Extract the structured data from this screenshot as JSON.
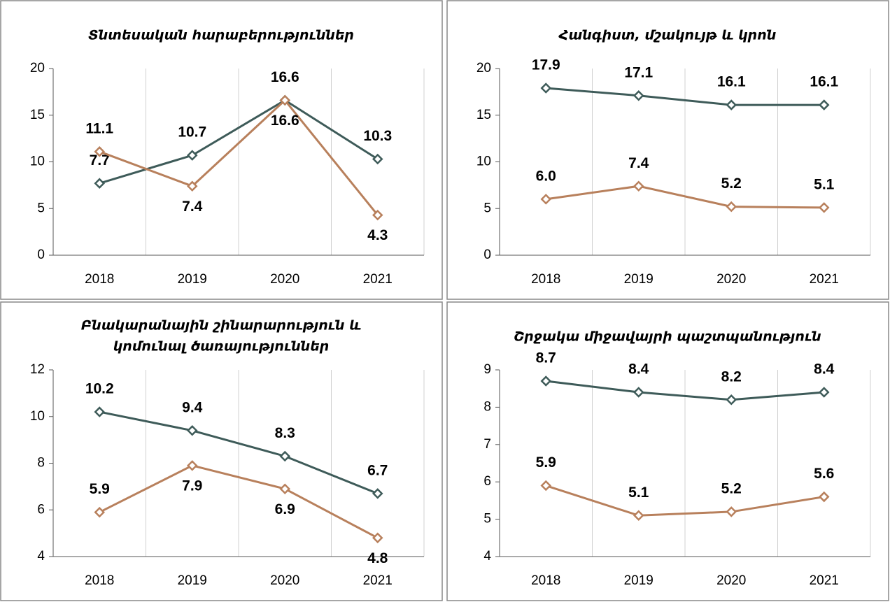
{
  "chart_data": [
    {
      "type": "line",
      "title": [
        "Տնտեսական հարաբերություններ"
      ],
      "categories": [
        "2018",
        "2019",
        "2020",
        "2021"
      ],
      "series": [
        {
          "color": "#3e5b59",
          "values": [
            7.7,
            10.7,
            16.6,
            10.3
          ],
          "value_labels": [
            "7.7",
            "10.7",
            "16.6",
            "10.3"
          ]
        },
        {
          "color": "#b8805c",
          "values": [
            11.1,
            7.4,
            16.6,
            4.3
          ],
          "value_labels": [
            "11.1",
            "7.4",
            "16.6",
            "4.3"
          ]
        }
      ],
      "ylim": [
        0,
        20
      ],
      "yticks": [
        0,
        5,
        10,
        15,
        20
      ]
    },
    {
      "type": "line",
      "title": [
        "Հանգիստ, մշակույթ և կրոն"
      ],
      "categories": [
        "2018",
        "2019",
        "2020",
        "2021"
      ],
      "series": [
        {
          "color": "#3e5b59",
          "values": [
            17.9,
            17.1,
            16.1,
            16.1
          ],
          "value_labels": [
            "17.9",
            "17.1",
            "16.1",
            "16.1"
          ]
        },
        {
          "color": "#b8805c",
          "values": [
            6.0,
            7.4,
            5.2,
            5.1
          ],
          "value_labels": [
            "6.0",
            "7.4",
            "5.2",
            "5.1"
          ]
        }
      ],
      "ylim": [
        0,
        20
      ],
      "yticks": [
        0,
        5,
        10,
        15,
        20
      ]
    },
    {
      "type": "line",
      "title": [
        "Բնակարանային շինարարություն և",
        "կոմունալ ծառայություններ"
      ],
      "categories": [
        "2018",
        "2019",
        "2020",
        "2021"
      ],
      "series": [
        {
          "color": "#3e5b59",
          "values": [
            10.2,
            9.4,
            8.3,
            6.7
          ],
          "value_labels": [
            "10.2",
            "9.4",
            "8.3",
            "6.7"
          ]
        },
        {
          "color": "#b8805c",
          "values": [
            5.9,
            7.9,
            6.9,
            4.8
          ],
          "value_labels": [
            "5.9",
            "7.9",
            "6.9",
            "4.8"
          ]
        }
      ],
      "ylim": [
        4,
        12
      ],
      "yticks": [
        4,
        6,
        8,
        10,
        12
      ]
    },
    {
      "type": "line",
      "title": [
        "Շրջակա միջավայրի պաշտպանություն"
      ],
      "categories": [
        "2018",
        "2019",
        "2020",
        "2021"
      ],
      "series": [
        {
          "color": "#3e5b59",
          "values": [
            8.7,
            8.4,
            8.2,
            8.4
          ],
          "value_labels": [
            "8.7",
            "8.4",
            "8.2",
            "8.4"
          ]
        },
        {
          "color": "#b8805c",
          "values": [
            5.9,
            5.1,
            5.2,
            5.6
          ],
          "value_labels": [
            "5.9",
            "5.1",
            "5.2",
            "5.6"
          ]
        }
      ],
      "ylim": [
        4,
        9
      ],
      "yticks": [
        4,
        5,
        6,
        7,
        8,
        9
      ]
    }
  ]
}
